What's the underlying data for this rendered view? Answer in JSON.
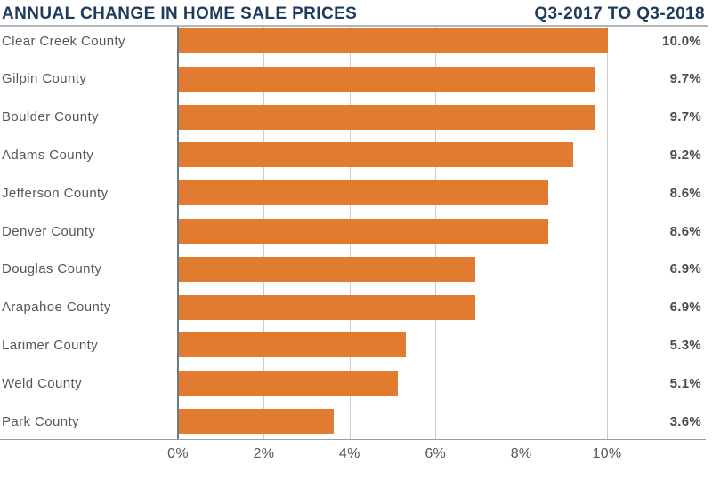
{
  "header": {
    "title_left": "ANNUAL CHANGE IN HOME SALE PRICES",
    "title_right": "Q3-2017 TO Q3-2018"
  },
  "chart_data": {
    "type": "bar",
    "orientation": "horizontal",
    "title": "ANNUAL CHANGE IN HOME SALE PRICES",
    "subtitle": "Q3-2017 TO Q3-2018",
    "categories": [
      "Clear Creek County",
      "Gilpin County",
      "Boulder County",
      "Adams County",
      "Jefferson County",
      "Denver County",
      "Douglas County",
      "Arapahoe County",
      "Larimer County",
      "Weld County",
      "Park County"
    ],
    "values": [
      10.0,
      9.7,
      9.7,
      9.2,
      8.6,
      8.6,
      6.9,
      6.9,
      5.3,
      5.1,
      3.6
    ],
    "value_labels": [
      "10.0%",
      "9.7%",
      "9.7%",
      "9.2%",
      "8.6%",
      "8.6%",
      "6.9%",
      "6.9%",
      "5.3%",
      "5.1%",
      "3.6%"
    ],
    "xlabel": "",
    "ylabel": "",
    "xlim": [
      0,
      10
    ],
    "x_ticks": [
      {
        "value": 0,
        "label": "0%"
      },
      {
        "value": 2,
        "label": "2%"
      },
      {
        "value": 4,
        "label": "4%"
      },
      {
        "value": 6,
        "label": "6%"
      },
      {
        "value": 8,
        "label": "8%"
      },
      {
        "value": 10,
        "label": "10%"
      }
    ],
    "grid": true,
    "legend": "none",
    "colors": {
      "bar": "#E07B2F",
      "title": "#1F3B5C",
      "category_label": "#55565A",
      "value_label": "#4A4B4D",
      "gridline": "#CCCCCC",
      "zero_axis": "#6E7A80",
      "bottom_axis": "#9A9FA3",
      "separator": "#B1B6BA"
    }
  }
}
